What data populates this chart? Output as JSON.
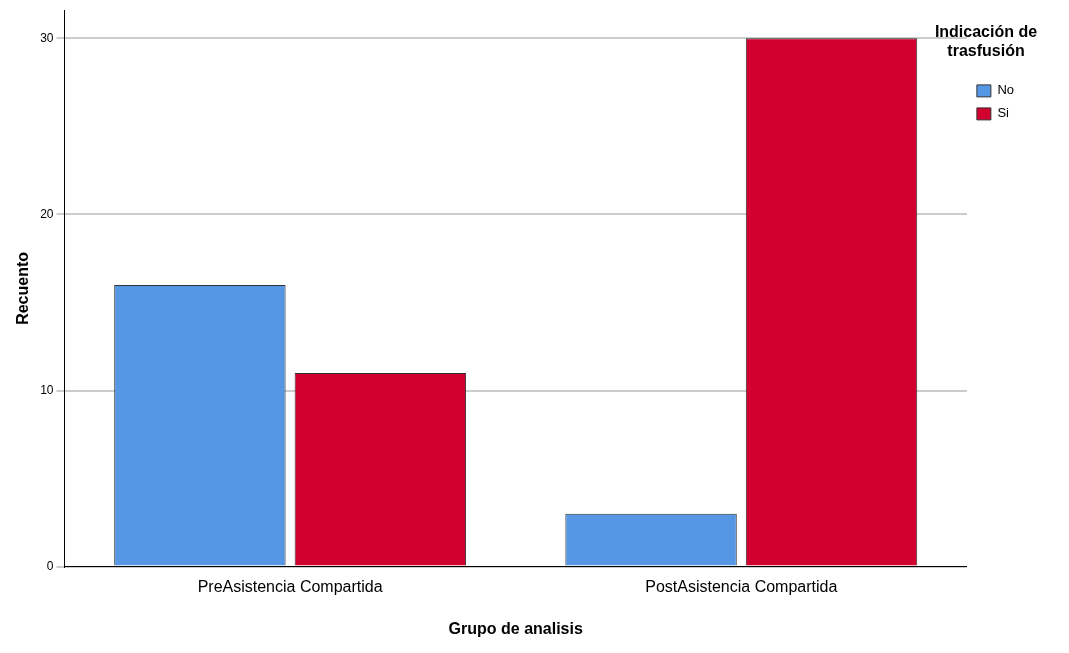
{
  "chart_data": {
    "type": "bar",
    "xlabel": "Grupo de analisis",
    "ylabel": "Recuento",
    "legend_title": "Indicación de trasfusión",
    "categories": [
      "PreAsistencia Compartida",
      "PostAsistencia Compartida"
    ],
    "series": [
      {
        "name": "No",
        "color": "#5596e5",
        "values": [
          16,
          3
        ]
      },
      {
        "name": "Si",
        "color": "#d1002e",
        "values": [
          11,
          30
        ]
      }
    ],
    "ylim": [
      0,
      31.6
    ],
    "yticks": [
      0,
      10,
      20,
      30
    ],
    "grid": "y",
    "legend": "top right"
  }
}
